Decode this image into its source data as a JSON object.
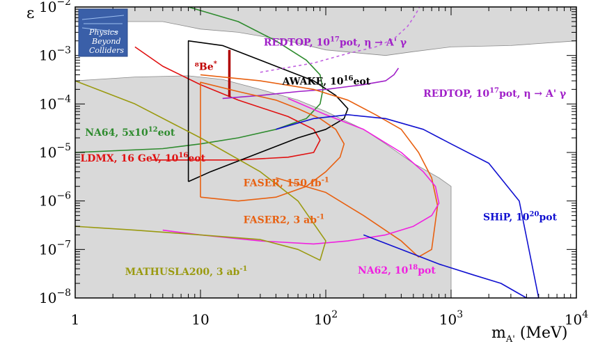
{
  "chart_data": {
    "type": "line",
    "title": "",
    "xlabel": "m_{A'} (MeV)",
    "ylabel": "ε",
    "xscale": "log",
    "yscale": "log",
    "xlim": [
      1,
      10000
    ],
    "ylim": [
      1e-08,
      0.01
    ],
    "grid": false,
    "x_ticks": [
      {
        "value": 1,
        "label": "1"
      },
      {
        "value": 10,
        "label": "10"
      },
      {
        "value": 100,
        "label": "10",
        "exp": "2"
      },
      {
        "value": 1000,
        "label": "10",
        "exp": "3"
      },
      {
        "value": 10000,
        "label": "10",
        "exp": "4"
      }
    ],
    "y_ticks": [
      {
        "value": 1e-08,
        "label": "10",
        "exp": "−8"
      },
      {
        "value": 1e-07,
        "label": "10",
        "exp": "−7"
      },
      {
        "value": 1e-06,
        "label": "10",
        "exp": "−6"
      },
      {
        "value": 1e-05,
        "label": "10",
        "exp": "−5"
      },
      {
        "value": 0.0001,
        "label": "10",
        "exp": "−4"
      },
      {
        "value": 0.001,
        "label": "10",
        "exp": "−3"
      },
      {
        "value": 0.01,
        "label": "10",
        "exp": "−2"
      }
    ],
    "excluded_region": {
      "color": "#d9d9d9",
      "points": [
        [
          1,
          0.0003
        ],
        [
          3,
          0.00036
        ],
        [
          8,
          0.00038
        ],
        [
          15,
          0.00032
        ],
        [
          30,
          0.0002
        ],
        [
          60,
          0.00012
        ],
        [
          100,
          7e-05
        ],
        [
          200,
          3e-05
        ],
        [
          300,
          1.5e-05
        ],
        [
          500,
          6e-06
        ],
        [
          800,
          3e-06
        ],
        [
          1000,
          2e-06
        ],
        [
          1000,
          1e-08
        ],
        [
          1,
          1e-08
        ]
      ]
    },
    "upper_region": {
      "color": "#d9d9d9",
      "points": [
        [
          1,
          0.01
        ],
        [
          10000,
          0.01
        ],
        [
          10000,
          0.002
        ],
        [
          3000,
          0.0016
        ],
        [
          1000,
          0.0015
        ],
        [
          500,
          0.0012
        ],
        [
          300,
          0.001
        ],
        [
          200,
          0.0011
        ],
        [
          100,
          0.0013
        ],
        [
          50,
          0.002
        ],
        [
          20,
          0.003
        ],
        [
          10,
          0.0035
        ],
        [
          5,
          0.005
        ],
        [
          1,
          0.005
        ]
      ]
    },
    "series": [
      {
        "name": "NA64, 5x10^{12}eot",
        "color": "#2e8b2e",
        "x": [
          1,
          5,
          10,
          20,
          40,
          70,
          90,
          95,
          90,
          70,
          40,
          20,
          8
        ],
        "y": [
          1e-05,
          1.2e-05,
          1.5e-05,
          2e-05,
          3e-05,
          5e-05,
          0.0001,
          0.0002,
          0.0004,
          0.0008,
          0.002,
          0.005,
          0.01
        ]
      },
      {
        "name": "LDMX, 16 GeV, 10^{16}eot",
        "color": "#e01010",
        "x": [
          4,
          20,
          50,
          80,
          90,
          80,
          50,
          20,
          10,
          5,
          3
        ],
        "y": [
          7e-06,
          7e-06,
          8e-06,
          1e-05,
          1.8e-05,
          3e-05,
          5.5e-05,
          0.00012,
          0.00025,
          0.0006,
          0.0015
        ]
      },
      {
        "name": "⁸Be*",
        "color": "#b00000",
        "x": [
          17,
          17
        ],
        "y": [
          0.00014,
          0.0013
        ]
      },
      {
        "name": "AWAKE, 10^{16}eot",
        "color": "#000000",
        "x": [
          8,
          8,
          15,
          40,
          80,
          120,
          150,
          140,
          100,
          60,
          30,
          12,
          8
        ],
        "y": [
          2.5e-06,
          0.002,
          0.0016,
          0.0006,
          0.0003,
          0.00015,
          8e-05,
          5e-05,
          3e-05,
          2e-05,
          1e-05,
          4e-06,
          2.5e-06
        ]
      },
      {
        "name": "REDTOP, 10^{17}pot, η → A' γ",
        "color": "#a020c8",
        "x": [
          15,
          30,
          60,
          100,
          200,
          300,
          350,
          380
        ],
        "y": [
          0.00013,
          0.00015,
          0.00018,
          0.0002,
          0.00025,
          0.0003,
          0.0004,
          0.00055
        ]
      },
      {
        "name": "REDTOP dotted",
        "color": "#c060e0",
        "dash": "4,4",
        "x": [
          30,
          80,
          150,
          250,
          350,
          450,
          520,
          560
        ],
        "y": [
          0.00045,
          0.0007,
          0.0011,
          0.0015,
          0.0022,
          0.004,
          0.007,
          0.01
        ]
      },
      {
        "name": "FASER, 150 fb^{-1}",
        "color": "#e86010",
        "x": [
          10,
          10,
          20,
          40,
          60,
          90,
          120,
          140,
          130,
          100,
          70,
          40,
          20,
          10
        ],
        "y": [
          1.2e-06,
          0.00028,
          0.00018,
          0.00012,
          8e-05,
          5e-05,
          3e-05,
          1.5e-05,
          8e-06,
          4e-06,
          2e-06,
          1.2e-06,
          1e-06,
          1.2e-06
        ]
      },
      {
        "name": "FASER2, 3 ab^{-1}",
        "color": "#e86010",
        "x": [
          10,
          30,
          80,
          150,
          250,
          400,
          550,
          700,
          780,
          700,
          550,
          400,
          200,
          100,
          40
        ],
        "y": [
          0.0004,
          0.0003,
          0.0002,
          0.00012,
          6e-05,
          3e-05,
          1e-05,
          3e-06,
          8e-07,
          1e-07,
          7e-08,
          1.5e-07,
          5e-07,
          1.5e-06,
          3e-06
        ]
      },
      {
        "name": "NA62, 10^{18}pot",
        "color": "#f020e0",
        "x": [
          5,
          10,
          30,
          80,
          150,
          300,
          500,
          700,
          800,
          750,
          600,
          400,
          200,
          100,
          50
        ],
        "y": [
          2.5e-07,
          2e-07,
          1.5e-07,
          1.3e-07,
          1.5e-07,
          2e-07,
          3e-07,
          5e-07,
          9e-07,
          2e-06,
          4e-06,
          1e-05,
          3e-05,
          6e-05,
          0.00013
        ]
      },
      {
        "name": "SHiP, 10^{20}pot",
        "color": "#1010d0",
        "x": [
          40,
          80,
          150,
          300,
          600,
          1000,
          2000,
          3500,
          5000,
          4000,
          2500,
          1500,
          800,
          400,
          200
        ],
        "y": [
          3e-05,
          5e-05,
          6e-05,
          5e-05,
          3e-05,
          1.5e-05,
          6e-06,
          1e-06,
          1e-08,
          1e-08,
          2e-08,
          3e-08,
          5e-08,
          1e-07,
          2e-07
        ]
      },
      {
        "name": "MATHUSLA200, 3 ab^{-1}",
        "color": "#9a9a10",
        "x": [
          1,
          3,
          10,
          30,
          60,
          100,
          90,
          60,
          30,
          10,
          3,
          1
        ],
        "y": [
          0.0003,
          0.0001,
          2e-05,
          4e-06,
          1e-06,
          1.5e-07,
          6e-08,
          1e-07,
          1.6e-07,
          2e-07,
          2.5e-07,
          3e-07
        ]
      }
    ],
    "annotations": [
      {
        "text": "REDTOP, 10",
        "sup": "17",
        "tail": "pot, η → A' γ",
        "color": "#a020c8",
        "x": 32,
        "y": 0.0016
      },
      {
        "text": "⁸Be",
        "sup": "*",
        "tail": "",
        "color": "#c00000",
        "x": 9,
        "y": 0.0005
      },
      {
        "text": "AWAKE, 10",
        "sup": "16",
        "tail": "eot",
        "color": "#000000",
        "x": 45,
        "y": 0.00025
      },
      {
        "text": "REDTOP, 10",
        "sup": "17",
        "tail": "pot, η → A' γ",
        "color": "#a020c8",
        "x": 600,
        "y": 0.00014
      },
      {
        "text": "NA64, 5x10",
        "sup": "12",
        "tail": "eot",
        "color": "#2e8b2e",
        "x": 1.2,
        "y": 2.2e-05
      },
      {
        "text": "LDMX, 16 GeV, 10",
        "sup": "16",
        "tail": "eot",
        "color": "#e01010",
        "x": 1.1,
        "y": 6.5e-06
      },
      {
        "text": "FASER, 150 fb",
        "sup": "-1",
        "tail": "",
        "color": "#e86010",
        "x": 22,
        "y": 2e-06
      },
      {
        "text": "FASER2, 3 ab",
        "sup": "-1",
        "tail": "",
        "color": "#e86010",
        "x": 22,
        "y": 3.5e-07
      },
      {
        "text": "SHiP, 10",
        "sup": "20",
        "tail": "pot",
        "color": "#1010d0",
        "x": 1800,
        "y": 4e-07
      },
      {
        "text": "MATHUSLA200, 3 ab",
        "sup": "-1",
        "tail": "",
        "color": "#9a9a10",
        "x": 2.5,
        "y": 3e-08
      },
      {
        "text": "NA62, 10",
        "sup": "18",
        "tail": "pot",
        "color": "#f020e0",
        "x": 180,
        "y": 3.2e-08
      }
    ]
  },
  "logo": {
    "line1": "Physics",
    "line2": "Beyond",
    "line3": "Colliders"
  }
}
